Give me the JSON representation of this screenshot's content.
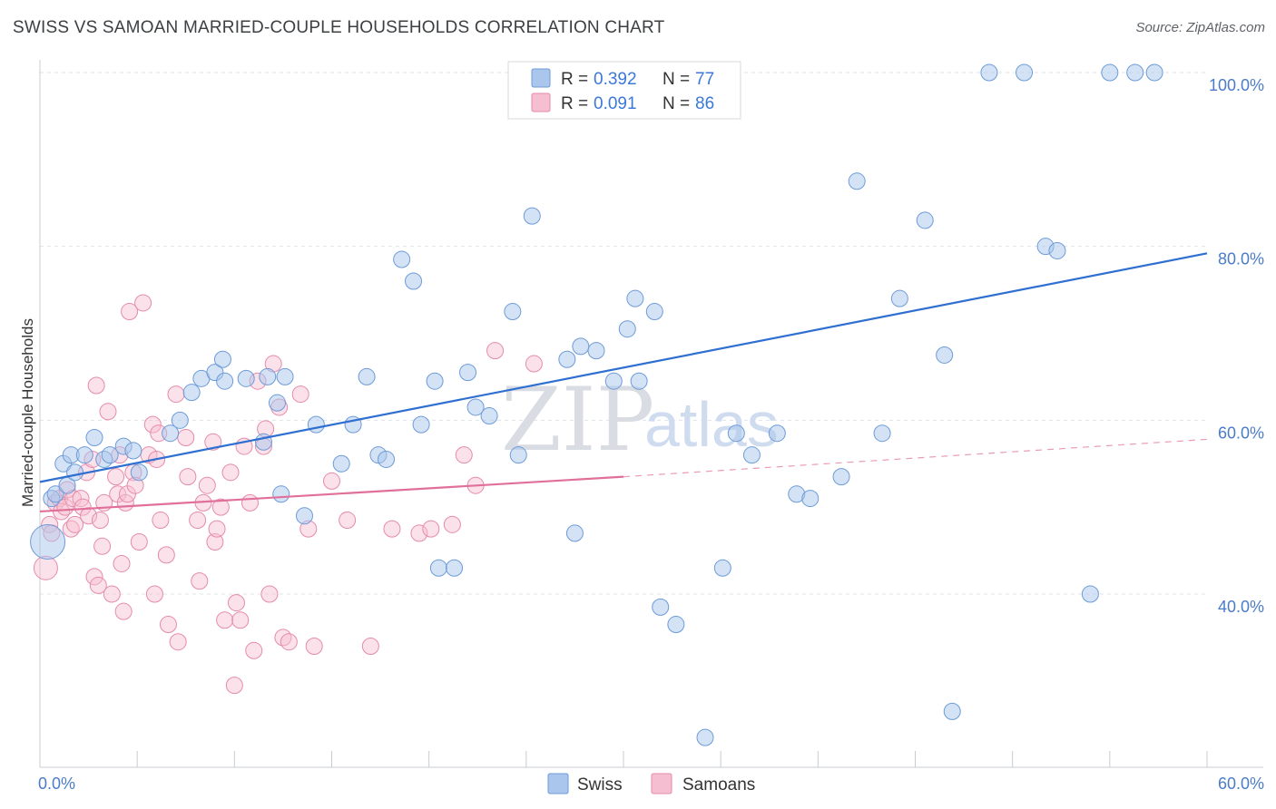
{
  "title": "SWISS VS SAMOAN MARRIED-COUPLE HOUSEHOLDS CORRELATION CHART",
  "source": "Source: ZipAtlas.com",
  "watermark": {
    "zip": "ZIP",
    "atlas": "atlas"
  },
  "colors": {
    "swiss_fill": "#aac6ec",
    "swiss_stroke": "#6d9bd8",
    "swiss_line": "#2f6fd1",
    "samoan_fill": "#f6bfd1",
    "samoan_stroke": "#e68aab",
    "samoan_line": "#e0709a",
    "grid": "#dfe3e8",
    "tick_text": "#4a7cc9"
  },
  "legend": {
    "swiss": {
      "r_label": "R =",
      "r_value": "0.392",
      "n_label": "N =",
      "n_value": "77"
    },
    "samoan": {
      "r_label": "R =",
      "r_value": "0.091",
      "n_label": "N =",
      "n_value": "86"
    }
  },
  "bottom_legend": {
    "swiss": "Swiss",
    "samoans": "Samoans"
  },
  "chart_data": {
    "type": "scatter",
    "title": "SWISS VS SAMOAN MARRIED-COUPLE HOUSEHOLDS CORRELATION CHART",
    "xlabel": "",
    "ylabel": "Married-couple Households",
    "xlim": [
      0,
      60
    ],
    "ylim": [
      20,
      102
    ],
    "x_tick_labels": [
      {
        "value": 0,
        "label": "0.0%"
      },
      {
        "value": 60,
        "label": "60.0%"
      }
    ],
    "y_tick_labels": [
      {
        "value": 40,
        "label": "40.0%"
      },
      {
        "value": 60,
        "label": "60.0%"
      },
      {
        "value": 80,
        "label": "80.0%"
      },
      {
        "value": 100,
        "label": "100.0%"
      }
    ],
    "series": [
      {
        "name": "Swiss",
        "r": 0.392,
        "n": 77,
        "trend": {
          "x0": 0,
          "y0": 52.9,
          "x1": 60,
          "y1": 79.2
        },
        "points": [
          [
            0.4,
            46,
            3
          ],
          [
            0.6,
            51,
            1
          ],
          [
            0.8,
            51.5,
            1
          ],
          [
            1.2,
            55,
            1
          ],
          [
            1.4,
            52.5,
            1
          ],
          [
            1.6,
            56,
            1
          ],
          [
            1.8,
            54,
            1
          ],
          [
            2.3,
            56,
            1
          ],
          [
            2.8,
            58,
            1
          ],
          [
            3.3,
            55.5,
            1
          ],
          [
            3.6,
            56,
            1
          ],
          [
            4.3,
            57,
            1
          ],
          [
            4.8,
            56.5,
            1
          ],
          [
            5.1,
            54,
            1
          ],
          [
            6.7,
            58.5,
            1
          ],
          [
            7.2,
            60,
            1
          ],
          [
            7.8,
            63.2,
            1
          ],
          [
            8.3,
            64.8,
            1
          ],
          [
            9.0,
            65.5,
            1
          ],
          [
            9.4,
            67,
            1
          ],
          [
            9.5,
            64.5,
            1
          ],
          [
            10.6,
            64.8,
            1
          ],
          [
            11.5,
            57.5,
            1
          ],
          [
            11.7,
            65,
            1
          ],
          [
            12.2,
            62,
            1
          ],
          [
            12.4,
            51.5,
            1
          ],
          [
            12.6,
            65,
            1
          ],
          [
            13.6,
            49,
            1
          ],
          [
            14.2,
            59.5,
            1
          ],
          [
            15.5,
            55,
            1
          ],
          [
            16.1,
            59.5,
            1
          ],
          [
            16.8,
            65,
            1
          ],
          [
            17.4,
            56,
            1
          ],
          [
            17.8,
            55.5,
            1
          ],
          [
            18.6,
            78.5,
            1
          ],
          [
            19.2,
            76,
            1
          ],
          [
            19.6,
            59.5,
            1
          ],
          [
            20.3,
            64.5,
            1
          ],
          [
            20.5,
            43,
            1
          ],
          [
            21.3,
            43,
            1
          ],
          [
            22.0,
            65.5,
            1
          ],
          [
            22.4,
            61.5,
            1
          ],
          [
            23.1,
            60.5,
            1
          ],
          [
            24.3,
            72.5,
            1
          ],
          [
            24.6,
            56,
            1
          ],
          [
            25.3,
            83.5,
            1
          ],
          [
            27.1,
            67,
            1
          ],
          [
            27.5,
            47,
            1
          ],
          [
            27.8,
            68.5,
            1
          ],
          [
            28.6,
            68,
            1
          ],
          [
            29.5,
            64.5,
            1
          ],
          [
            30.2,
            70.5,
            1
          ],
          [
            30.6,
            74,
            1
          ],
          [
            30.8,
            64.5,
            1
          ],
          [
            31.6,
            72.5,
            1
          ],
          [
            31.9,
            38.5,
            1
          ],
          [
            32.7,
            36.5,
            1
          ],
          [
            35.1,
            43,
            1
          ],
          [
            35.8,
            58.5,
            1
          ],
          [
            36.6,
            56,
            1
          ],
          [
            37.9,
            58.5,
            1
          ],
          [
            38.9,
            51.5,
            1
          ],
          [
            39.6,
            51,
            1
          ],
          [
            41.2,
            53.5,
            1
          ],
          [
            42.0,
            87.5,
            1
          ],
          [
            43.3,
            58.5,
            1
          ],
          [
            44.2,
            74,
            1
          ],
          [
            45.5,
            83,
            1
          ],
          [
            46.5,
            67.5,
            1
          ],
          [
            46.9,
            26.5,
            1
          ],
          [
            48.8,
            100,
            1
          ],
          [
            50.6,
            100,
            1
          ],
          [
            51.7,
            80,
            1
          ],
          [
            52.3,
            79.5,
            1
          ],
          [
            54.0,
            40,
            1
          ],
          [
            55.0,
            100,
            1
          ],
          [
            56.3,
            100,
            1
          ],
          [
            57.3,
            100,
            1
          ],
          [
            34.2,
            23.5,
            1
          ]
        ]
      },
      {
        "name": "Samoans",
        "r": 0.091,
        "n": 86,
        "trend_solid": {
          "x0": 0,
          "y0": 49.5,
          "x1": 30,
          "y1": 53.5
        },
        "trend_dashed": {
          "x0": 30,
          "y0": 53.5,
          "x1": 60,
          "y1": 57.8
        },
        "points": [
          [
            0.3,
            43,
            2
          ],
          [
            0.5,
            48,
            1
          ],
          [
            0.6,
            47,
            1
          ],
          [
            0.8,
            50.5,
            1
          ],
          [
            1.0,
            51,
            1
          ],
          [
            1.1,
            49.5,
            1
          ],
          [
            1.3,
            50,
            1
          ],
          [
            1.4,
            52,
            1
          ],
          [
            1.6,
            47.5,
            1
          ],
          [
            1.7,
            51,
            1
          ],
          [
            1.8,
            48,
            1
          ],
          [
            2.1,
            51,
            1
          ],
          [
            2.2,
            50,
            1
          ],
          [
            2.4,
            54,
            1
          ],
          [
            2.5,
            49,
            1
          ],
          [
            2.7,
            55.5,
            1
          ],
          [
            2.8,
            42,
            1
          ],
          [
            2.9,
            64,
            1
          ],
          [
            3.0,
            41,
            1
          ],
          [
            3.1,
            48.5,
            1
          ],
          [
            3.2,
            45.5,
            1
          ],
          [
            3.3,
            50.5,
            1
          ],
          [
            3.5,
            61,
            1
          ],
          [
            3.7,
            40,
            1
          ],
          [
            3.9,
            53.5,
            1
          ],
          [
            4.0,
            51.5,
            1
          ],
          [
            4.1,
            56,
            1
          ],
          [
            4.2,
            43.5,
            1
          ],
          [
            4.3,
            38,
            1
          ],
          [
            4.4,
            50.5,
            1
          ],
          [
            4.5,
            51.5,
            1
          ],
          [
            4.6,
            72.5,
            1
          ],
          [
            4.8,
            54,
            1
          ],
          [
            4.9,
            52.5,
            1
          ],
          [
            5.1,
            46,
            1
          ],
          [
            5.3,
            73.5,
            1
          ],
          [
            5.6,
            56,
            1
          ],
          [
            5.8,
            59.5,
            1
          ],
          [
            5.9,
            40,
            1
          ],
          [
            6.0,
            55.5,
            1
          ],
          [
            6.1,
            58.5,
            1
          ],
          [
            6.2,
            48.5,
            1
          ],
          [
            6.5,
            44.5,
            1
          ],
          [
            6.6,
            36.5,
            1
          ],
          [
            7.0,
            63,
            1
          ],
          [
            7.1,
            34.5,
            1
          ],
          [
            7.5,
            58,
            1
          ],
          [
            7.6,
            53.5,
            1
          ],
          [
            8.1,
            48.5,
            1
          ],
          [
            8.2,
            41.5,
            1
          ],
          [
            8.4,
            50.5,
            1
          ],
          [
            8.6,
            52.5,
            1
          ],
          [
            8.9,
            57.5,
            1
          ],
          [
            9.0,
            46,
            1
          ],
          [
            9.1,
            47.5,
            1
          ],
          [
            9.3,
            50,
            1
          ],
          [
            9.5,
            37,
            1
          ],
          [
            9.8,
            54,
            1
          ],
          [
            10.0,
            29.5,
            1
          ],
          [
            10.1,
            39,
            1
          ],
          [
            10.3,
            37,
            1
          ],
          [
            10.5,
            57,
            1
          ],
          [
            10.8,
            50.5,
            1
          ],
          [
            11.0,
            33.5,
            1
          ],
          [
            11.2,
            64.5,
            1
          ],
          [
            11.5,
            57,
            1
          ],
          [
            11.6,
            59,
            1
          ],
          [
            11.8,
            40,
            1
          ],
          [
            12.0,
            66.5,
            1
          ],
          [
            12.3,
            61.5,
            1
          ],
          [
            12.5,
            35,
            1
          ],
          [
            12.8,
            34.5,
            1
          ],
          [
            13.4,
            63,
            1
          ],
          [
            13.8,
            47.5,
            1
          ],
          [
            14.1,
            34,
            1
          ],
          [
            15.0,
            53,
            1
          ],
          [
            15.8,
            48.5,
            1
          ],
          [
            17.0,
            34,
            1
          ],
          [
            18.1,
            47.5,
            1
          ],
          [
            19.5,
            47,
            1
          ],
          [
            20.1,
            47.5,
            1
          ],
          [
            21.2,
            48,
            1
          ],
          [
            21.8,
            56,
            1
          ],
          [
            22.4,
            52.5,
            1
          ],
          [
            23.4,
            68,
            1
          ],
          [
            25.4,
            66.5,
            1
          ]
        ]
      }
    ]
  }
}
